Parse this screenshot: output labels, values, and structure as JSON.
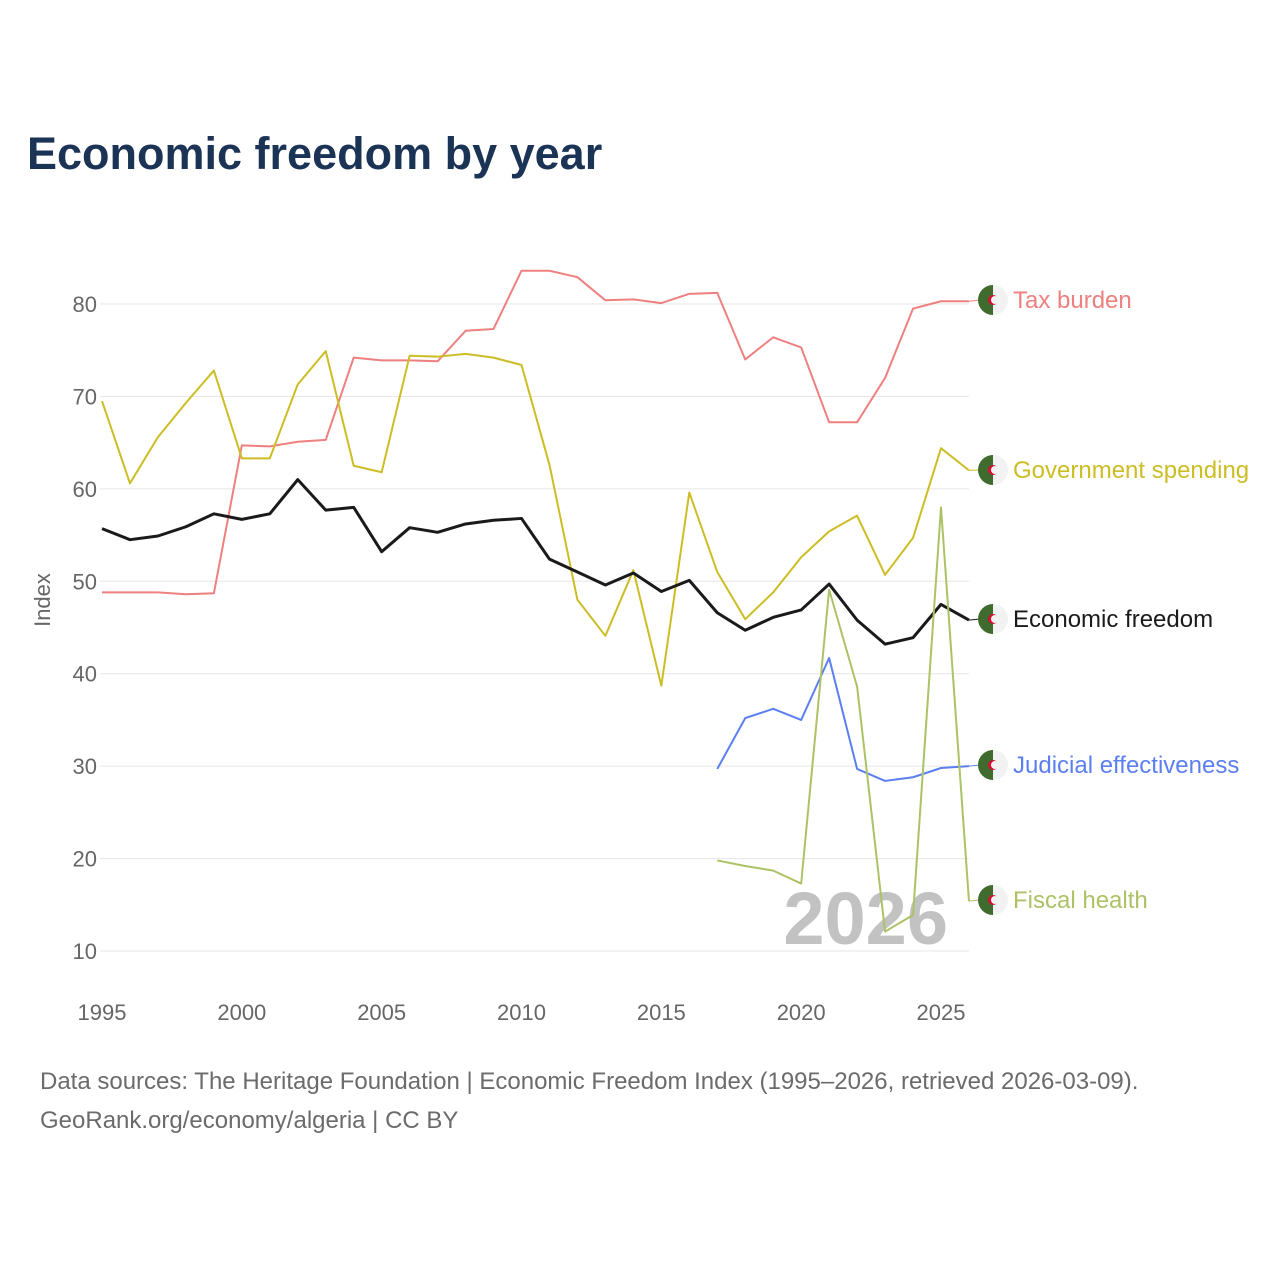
{
  "title": "Economic freedom by year",
  "footer": {
    "line1": "Data sources: The Heritage Foundation | Economic Freedom Index (1995–2026, retrieved 2026-03-09).",
    "line2": "GeoRank.org/economy/algeria | CC BY"
  },
  "chart_data": {
    "type": "line",
    "title": "Economic freedom by year",
    "xlabel": "",
    "ylabel": "Index",
    "xlim": [
      1995,
      2026
    ],
    "ylim": [
      10,
      85
    ],
    "xticks": [
      1995,
      2000,
      2005,
      2010,
      2015,
      2020,
      2025
    ],
    "yticks": [
      10,
      20,
      30,
      40,
      50,
      60,
      70,
      80
    ],
    "grid": true,
    "watermark": "2026",
    "legend_placement": "right (end-of-line labels with flag icon)",
    "series": [
      {
        "name": "Tax burden",
        "color": "#ee8080",
        "width": 2,
        "start": 1995,
        "values": [
          48.8,
          48.8,
          48.8,
          48.6,
          48.7,
          64.7,
          64.6,
          65.1,
          65.3,
          74.2,
          73.9,
          73.9,
          73.8,
          77.1,
          77.3,
          83.6,
          83.6,
          82.9,
          80.4,
          80.5,
          80.1,
          81.1,
          81.2,
          74.0,
          76.4,
          75.3,
          67.2,
          67.2,
          72.0,
          79.5,
          80.3,
          80.3
        ]
      },
      {
        "name": "Government spending",
        "color": "#cdbd25",
        "width": 2,
        "start": 1995,
        "values": [
          69.5,
          60.6,
          65.6,
          69.3,
          72.8,
          63.3,
          63.3,
          71.3,
          74.9,
          62.5,
          61.8,
          74.4,
          74.3,
          74.6,
          74.2,
          73.4,
          62.6,
          48.0,
          44.1,
          51.2,
          38.7,
          59.6,
          51.0,
          45.9,
          48.8,
          52.6,
          55.4,
          57.1,
          50.7,
          54.7,
          64.4,
          62.0
        ]
      },
      {
        "name": "Economic freedom",
        "color": "#1a1a1a",
        "width": 3,
        "start": 1995,
        "values": [
          55.7,
          54.5,
          54.9,
          55.9,
          57.3,
          56.7,
          57.3,
          61.0,
          57.7,
          58.0,
          53.2,
          55.8,
          55.3,
          56.2,
          56.6,
          56.8,
          52.4,
          51.0,
          49.6,
          50.9,
          48.9,
          50.1,
          46.6,
          44.7,
          46.1,
          46.9,
          49.7,
          45.8,
          43.2,
          43.9,
          47.5,
          45.8
        ]
      },
      {
        "name": "Judicial effectiveness",
        "color": "#5b7ff0",
        "width": 2,
        "start": 2017,
        "values": [
          29.7,
          35.2,
          36.2,
          35.0,
          41.7,
          29.7,
          28.4,
          28.8,
          29.8,
          30.0
        ]
      },
      {
        "name": "Fiscal health",
        "color": "#adc266",
        "width": 2,
        "start": 2017,
        "values": [
          19.8,
          19.2,
          18.7,
          17.3,
          49.1,
          38.6,
          12.1,
          13.9,
          58.0,
          15.4
        ]
      }
    ]
  }
}
